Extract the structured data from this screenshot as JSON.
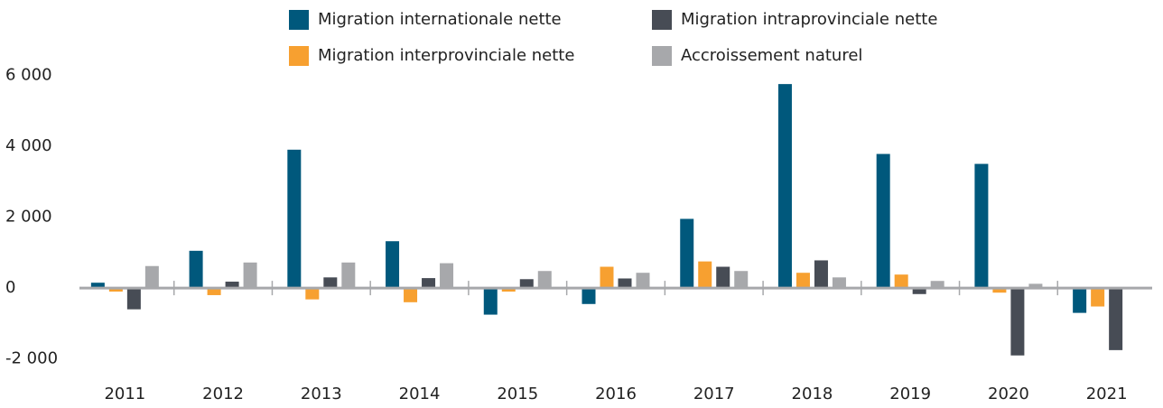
{
  "chart_data": {
    "type": "bar",
    "categories": [
      "2011",
      "2012",
      "2013",
      "2014",
      "2015",
      "2016",
      "2017",
      "2018",
      "2019",
      "2020",
      "2021"
    ],
    "series": [
      {
        "name": "Migration internationale nette",
        "color": "#00587c",
        "values": [
          150,
          1050,
          3900,
          1320,
          -750,
          -450,
          1950,
          5750,
          3780,
          3500,
          -700
        ]
      },
      {
        "name": "Migration interprovinciale nette",
        "color": "#f7a030",
        "values": [
          -100,
          -200,
          -320,
          -400,
          -100,
          600,
          750,
          430,
          380,
          -130,
          -520
        ]
      },
      {
        "name": "Migration intraprovinciale nette",
        "color": "#474c55",
        "values": [
          -600,
          180,
          300,
          280,
          250,
          270,
          600,
          780,
          -170,
          -1900,
          -1750
        ]
      },
      {
        "name": "Accroissement naturel",
        "color": "#a7a8ab",
        "values": [
          620,
          720,
          720,
          700,
          480,
          430,
          480,
          300,
          200,
          120,
          -30
        ]
      }
    ],
    "ylim": [
      -3000,
      7000
    ],
    "yticks": [
      {
        "value": -2000,
        "label": "-2 000"
      },
      0,
      {
        "value": 2000,
        "label": "2 000"
      },
      {
        "value": 4000,
        "label": "4 000"
      },
      {
        "value": 6000,
        "label": "6 000"
      }
    ]
  }
}
